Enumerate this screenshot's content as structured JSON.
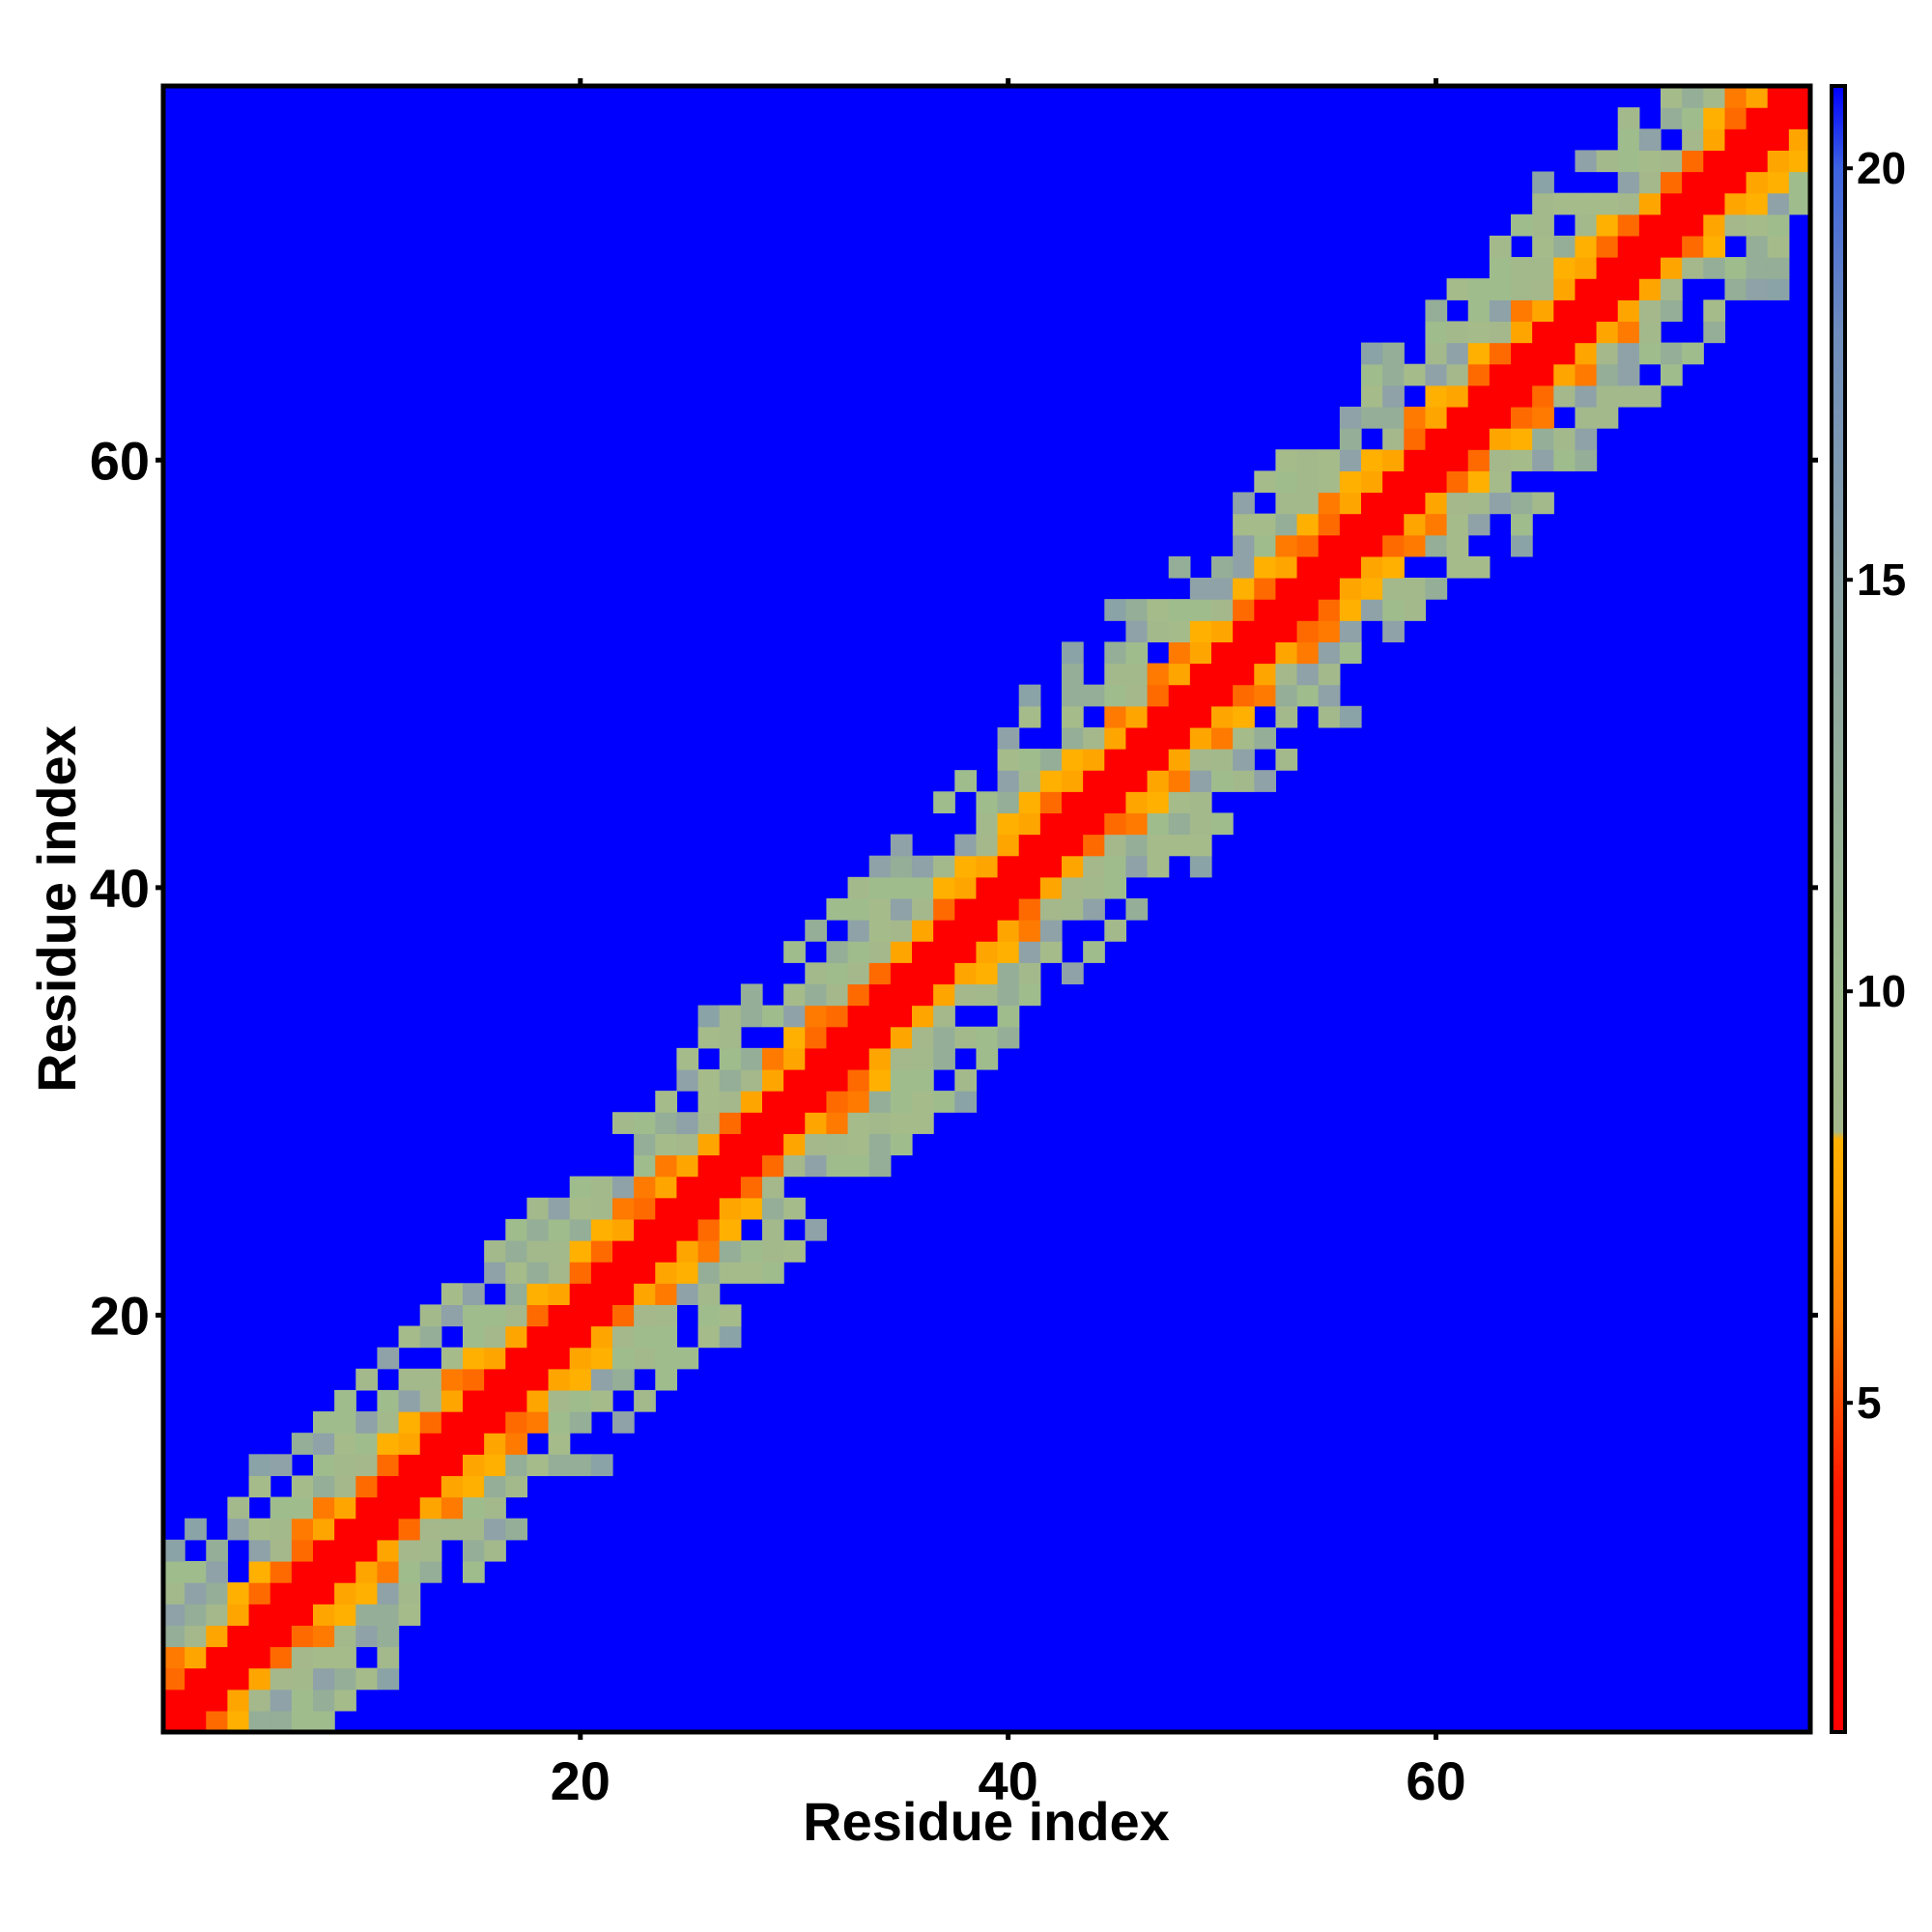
{
  "chart_data": {
    "type": "heatmap",
    "title": "",
    "xlabel": "Residue index",
    "ylabel": "Residue index",
    "x_range": [
      1,
      77
    ],
    "y_range": [
      1,
      77
    ],
    "x_ticks": [
      20,
      40,
      60
    ],
    "y_ticks": [
      20,
      40,
      60
    ],
    "x_tick_labels": [
      "20",
      "40",
      "60"
    ],
    "y_tick_labels": [
      "20",
      "40",
      "60"
    ],
    "colorbar": {
      "range": [
        1,
        21
      ],
      "ticks": [
        5,
        10,
        15,
        20
      ],
      "tick_labels": [
        "5",
        "10",
        "15",
        "20"
      ],
      "colors": [
        {
          "value": 1,
          "color": "#ff0000"
        },
        {
          "value": 4,
          "color": "#ff1a00"
        },
        {
          "value": 6,
          "color": "#ff7a00"
        },
        {
          "value": 7.5,
          "color": "#ffa500"
        },
        {
          "value": 8.2,
          "color": "#ffb000"
        },
        {
          "value": 8.3,
          "color": "#a4b88c"
        },
        {
          "value": 10,
          "color": "#9dbb8e"
        },
        {
          "value": 15,
          "color": "#8aa3a6"
        },
        {
          "value": 18,
          "color": "#6f8dbd"
        },
        {
          "value": 20,
          "color": "#3d63e0"
        },
        {
          "value": 21,
          "color": "#0000ff"
        }
      ],
      "background_color": "#0000ff"
    },
    "description_of_values": "symmetric residue-residue distance map; diagonal band of low values (red, orange) flanked by intermediate values (green-gray), far-from-diagonal cells at the maximum (blue)"
  }
}
